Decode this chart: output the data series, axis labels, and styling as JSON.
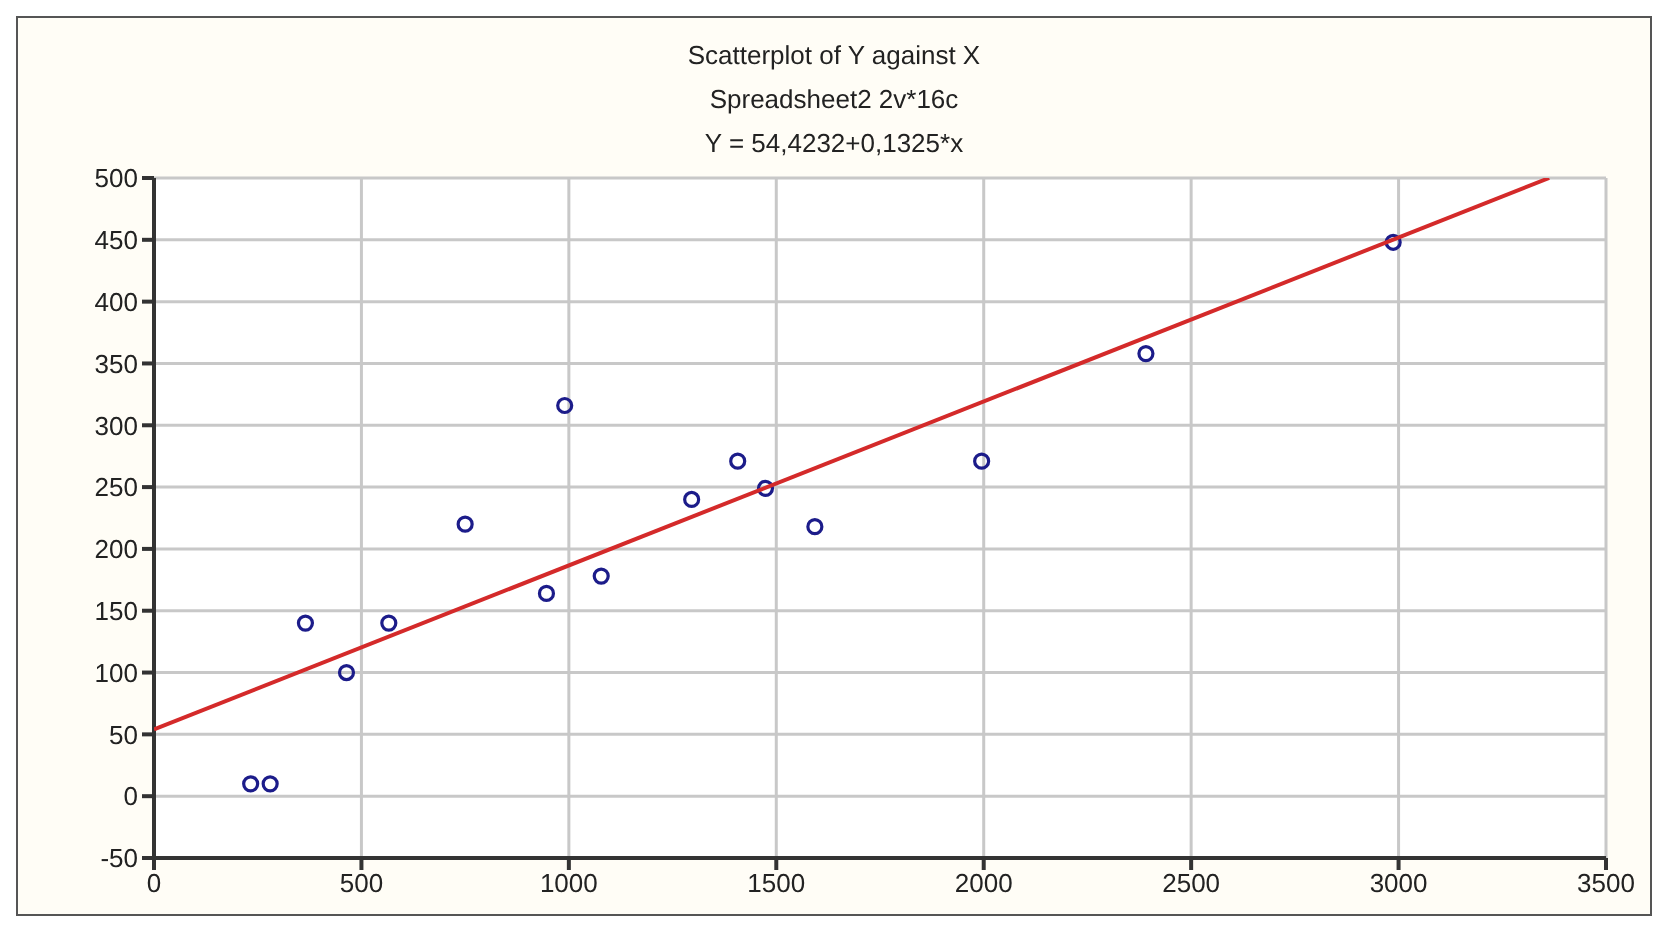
{
  "chart_data": {
    "type": "scatter",
    "title": "Scatterplot of Y against X",
    "subtitle": "Spreadsheet2 2v*16c",
    "annotations": [
      "Y = 54,4232+0,1325*x"
    ],
    "xlim": [
      0,
      3500
    ],
    "xticks": [
      0,
      500,
      1000,
      1500,
      2000,
      2500,
      3000,
      3500
    ],
    "ylim": [
      -50,
      500
    ],
    "yticks": [
      -50,
      0,
      50,
      100,
      150,
      200,
      250,
      300,
      350,
      400,
      450,
      500
    ],
    "grid": true,
    "marker": "circle",
    "series": [
      {
        "color": "#1c1c8a",
        "x": [
          233,
          280,
          365,
          464,
          566,
          750,
          946,
          990,
          1078,
          1296,
          1407,
          1474,
          1593,
          1995,
          2391,
          2987
        ],
        "values": [
          10,
          10,
          140,
          100,
          140,
          220,
          164,
          316,
          178,
          240,
          271,
          249,
          218,
          271,
          358,
          448
        ]
      },
      {
        "type": "line",
        "marker": "none",
        "color": "#d42a2a",
        "line_style": "solid",
        "x": [
          0,
          3363
        ],
        "values": [
          54,
          500
        ]
      }
    ]
  }
}
